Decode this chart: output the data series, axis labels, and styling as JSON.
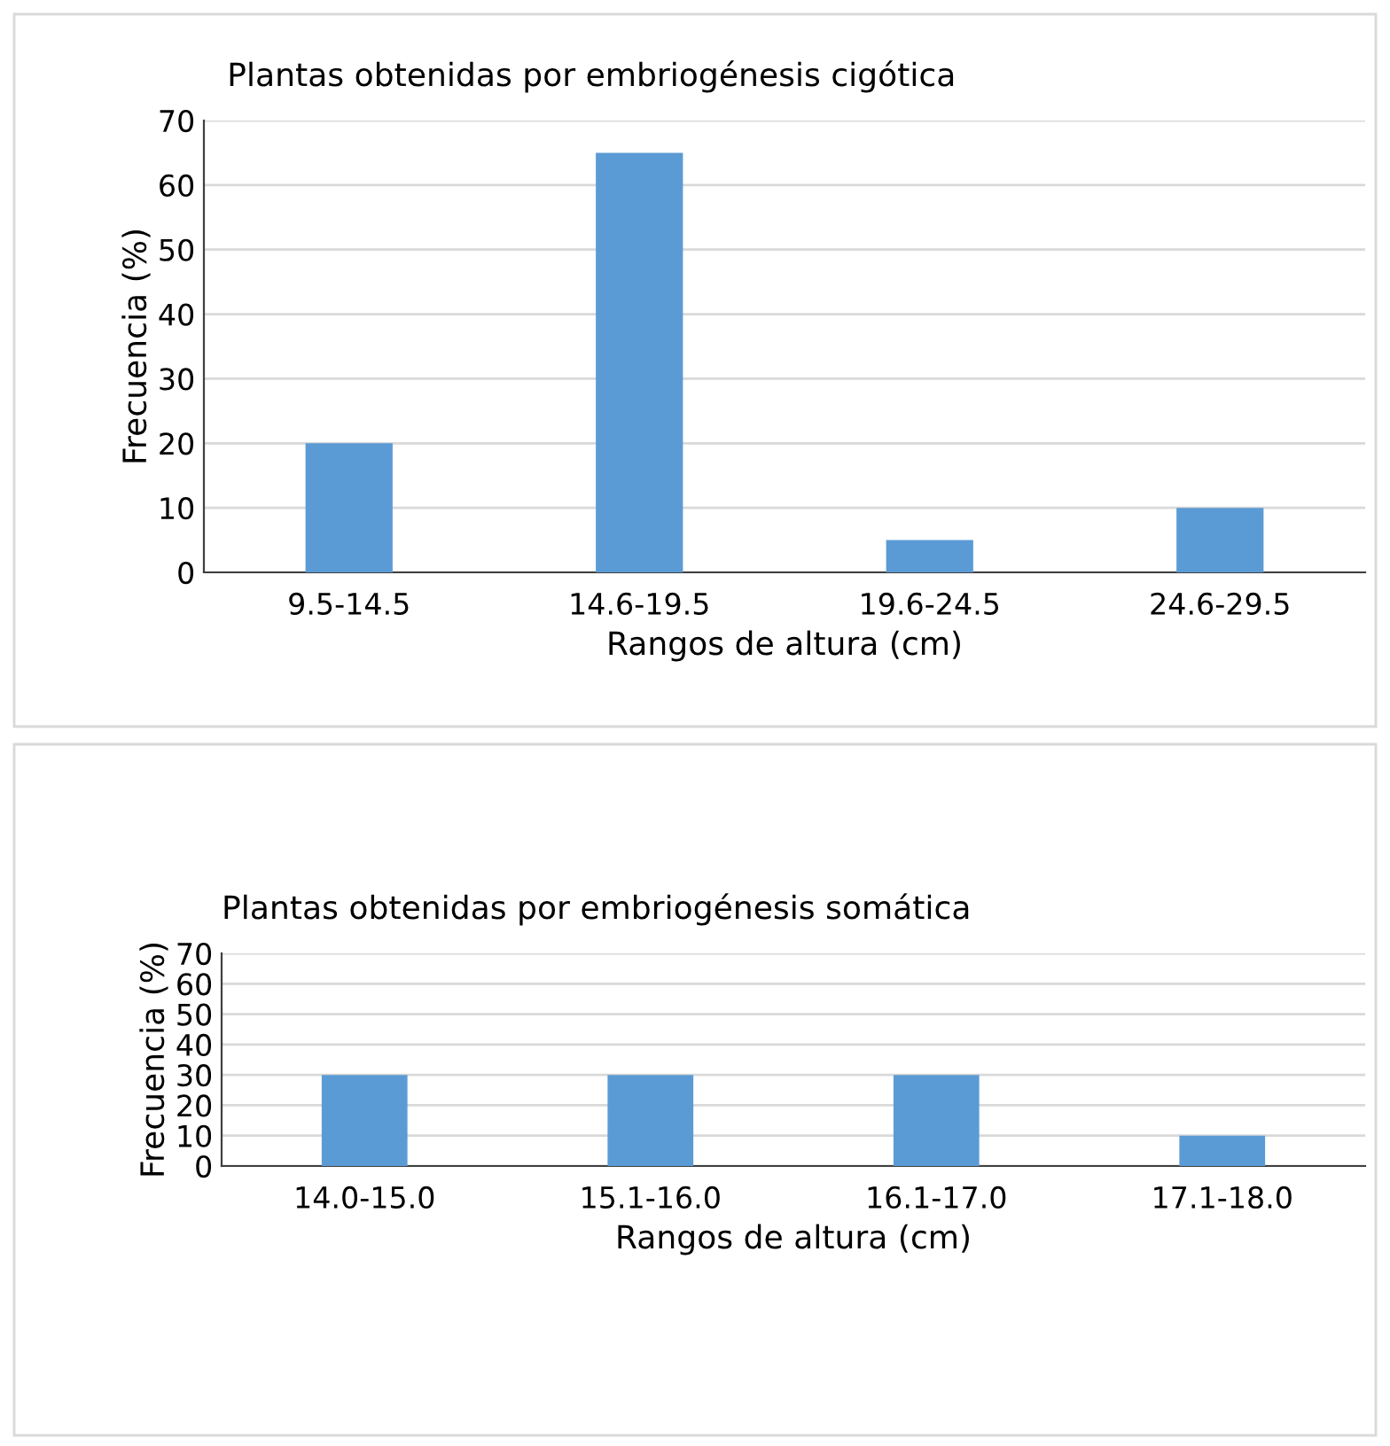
{
  "chart_data": [
    {
      "type": "bar",
      "title": "Plantas obtenidas por embriogénesis cigótica",
      "xlabel": "Rangos de altura (cm)",
      "ylabel": "Frecuencia (%)",
      "categories": [
        "9.5-14.5",
        "14.6-19.5",
        "19.6-24.5",
        "24.6-29.5"
      ],
      "values": [
        20,
        65,
        5,
        10
      ],
      "color": "#5b9bd5",
      "ylim": [
        0,
        70
      ],
      "yticks": [
        0,
        10,
        20,
        30,
        40,
        50,
        60,
        70
      ],
      "grid": "y"
    },
    {
      "type": "bar",
      "title": "Plantas obtenidas por embriogénesis somática",
      "xlabel": "Rangos de altura (cm)",
      "ylabel": "Frecuencia (%)",
      "categories": [
        "14.0-15.0",
        "15.1-16.0",
        "16.1-17.0",
        "17.1-18.0"
      ],
      "values": [
        30,
        30,
        30,
        10
      ],
      "color": "#5b9bd5",
      "ylim": [
        0,
        70
      ],
      "yticks": [
        0,
        10,
        20,
        30,
        40,
        50,
        60,
        70
      ],
      "grid": "y"
    }
  ]
}
